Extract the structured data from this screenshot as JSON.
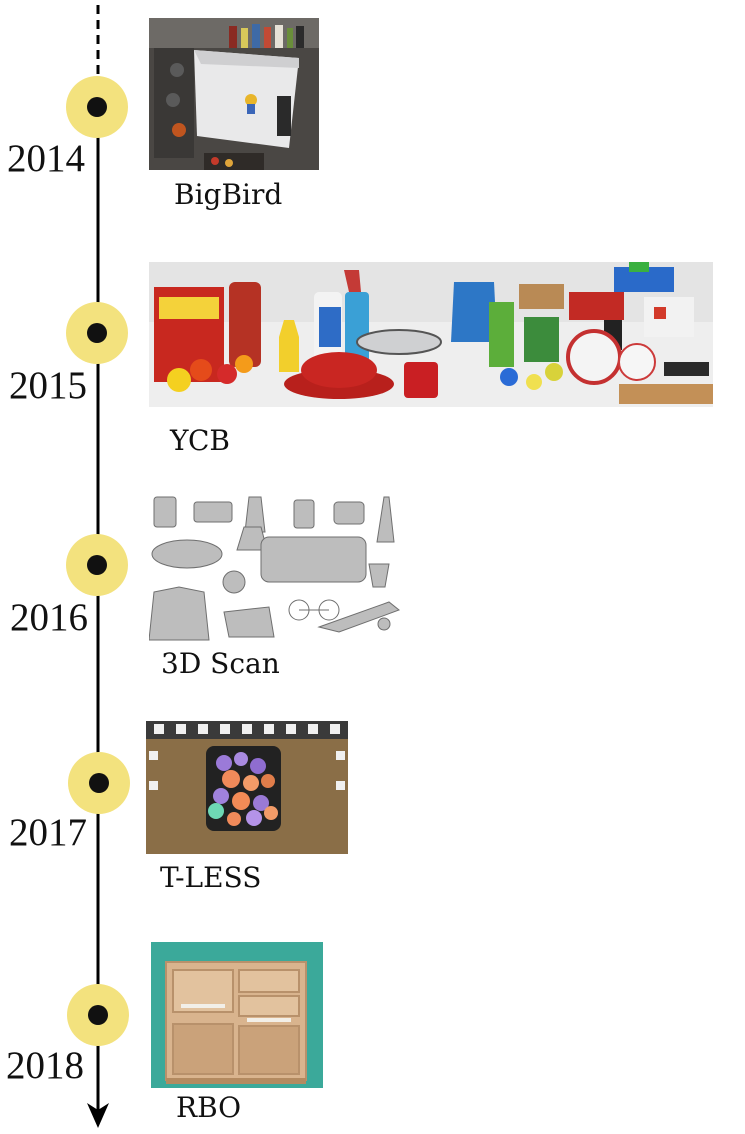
{
  "timeline": {
    "entries": [
      {
        "year": "2014",
        "dataset": "BigBird"
      },
      {
        "year": "2015",
        "dataset": "YCB"
      },
      {
        "year": "2016",
        "dataset": "3D Scan"
      },
      {
        "year": "2017",
        "dataset": "T-LESS"
      },
      {
        "year": "2018",
        "dataset": "RBO"
      }
    ]
  },
  "colors": {
    "axis": "#000000",
    "marker_ring": "#f3e27e",
    "marker_dot": "#111111"
  }
}
